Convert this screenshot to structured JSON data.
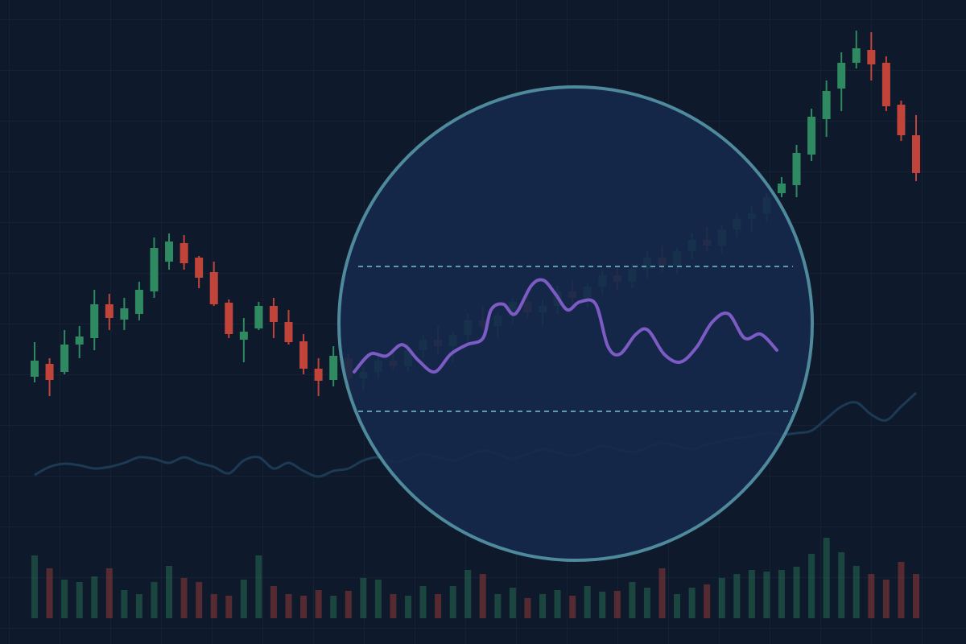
{
  "chart_data": {
    "type": "candlestick",
    "ylim": [
      0,
      800
    ],
    "up_color": "#2f8a62",
    "down_color": "#c0443a",
    "open": [
      332,
      348,
      338,
      372,
      380,
      422,
      403,
      410,
      438,
      475,
      498,
      480,
      462,
      424,
      378,
      392,
      420,
      400,
      376,
      342,
      328,
      355,
      330,
      338,
      352,
      345,
      365,
      378,
      370,
      384,
      402,
      395,
      408,
      425,
      412,
      420,
      438,
      430,
      444,
      458,
      450,
      466,
      480,
      470,
      488,
      502,
      495,
      515,
      528,
      535,
      560,
      570,
      608,
      652,
      690,
      722,
      738,
      722,
      670,
      632
    ],
    "high": [
      375,
      355,
      390,
      395,
      440,
      435,
      430,
      450,
      505,
      510,
      508,
      482,
      475,
      428,
      405,
      425,
      430,
      415,
      385,
      355,
      370,
      360,
      345,
      360,
      368,
      372,
      385,
      395,
      388,
      410,
      420,
      412,
      430,
      440,
      428,
      445,
      452,
      448,
      465,
      470,
      472,
      488,
      495,
      492,
      510,
      518,
      520,
      535,
      545,
      560,
      580,
      620,
      665,
      700,
      735,
      762,
      760,
      730,
      675,
      657
    ],
    "low": [
      325,
      308,
      335,
      355,
      365,
      390,
      390,
      402,
      430,
      465,
      465,
      442,
      420,
      380,
      350,
      390,
      380,
      372,
      335,
      308,
      320,
      322,
      315,
      330,
      340,
      338,
      355,
      360,
      350,
      375,
      390,
      380,
      398,
      405,
      395,
      410,
      420,
      418,
      435,
      440,
      442,
      455,
      462,
      460,
      478,
      488,
      485,
      505,
      512,
      525,
      555,
      555,
      600,
      630,
      662,
      715,
      700,
      662,
      625,
      575
    ],
    "close": [
      352,
      328,
      372,
      382,
      422,
      405,
      417,
      440,
      492,
      500,
      473,
      455,
      422,
      385,
      388,
      420,
      400,
      375,
      342,
      327,
      358,
      330,
      338,
      352,
      345,
      365,
      378,
      370,
      384,
      402,
      395,
      408,
      425,
      412,
      420,
      438,
      430,
      444,
      458,
      450,
      466,
      480,
      470,
      488,
      502,
      495,
      515,
      528,
      535,
      555,
      572,
      610,
      655,
      687,
      722,
      740,
      720,
      668,
      632,
      585
    ],
    "oscillator": {
      "color": "#1d3a55",
      "values": [
        210,
        220,
        224,
        222,
        218,
        220,
        225,
        232,
        230,
        225,
        232,
        225,
        220,
        212,
        228,
        232,
        218,
        225,
        215,
        208,
        215,
        218,
        228,
        232,
        226,
        230,
        236,
        232,
        228,
        234,
        240,
        236,
        230,
        236,
        242,
        238,
        234,
        240,
        246,
        242,
        238,
        244,
        250,
        246,
        242,
        248,
        252,
        256,
        258,
        262,
        260,
        262,
        265,
        280,
        295,
        300,
        285,
        278,
        295,
        312
      ]
    },
    "volume": {
      "ylim": [
        0,
        120
      ],
      "values": [
        78,
        62,
        48,
        45,
        52,
        62,
        35,
        30,
        45,
        65,
        50,
        45,
        30,
        28,
        48,
        78,
        40,
        30,
        28,
        35,
        28,
        34,
        50,
        48,
        30,
        28,
        40,
        30,
        40,
        60,
        55,
        30,
        38,
        25,
        30,
        35,
        28,
        40,
        33,
        34,
        45,
        38,
        62,
        30,
        38,
        42,
        50,
        55,
        60,
        58,
        60,
        64,
        80,
        100,
        82,
        65,
        55,
        48,
        70,
        55
      ]
    },
    "zoom": {
      "color": "#7d5bc4",
      "xlim": [
        440,
        965
      ],
      "ylim": [
        0,
        100
      ],
      "levels": [
        70,
        30
      ],
      "x": [
        440,
        460,
        480,
        500,
        520,
        540,
        560,
        580,
        600,
        610,
        625,
        640,
        660,
        675,
        690,
        705,
        720,
        740,
        755,
        770,
        790,
        805,
        825,
        845,
        865,
        885,
        905,
        925,
        945,
        965
      ],
      "values": [
        40.9,
        45.8,
        45.3,
        48.4,
        44,
        40.9,
        45.8,
        48.4,
        50.2,
        58,
        59.6,
        56.9,
        64.7,
        66.2,
        62.4,
        58,
        60.2,
        59.6,
        48,
        45.8,
        51.3,
        52.4,
        45.8,
        43.6,
        47.6,
        54.7,
        56.9,
        50.2,
        51.3,
        46.9
      ]
    }
  }
}
